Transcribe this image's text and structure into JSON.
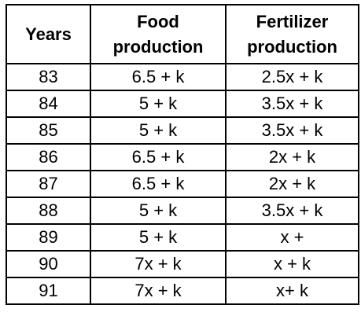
{
  "table": {
    "headers": {
      "years": "Years",
      "food_line1": "Food",
      "food_line2": "production",
      "fert_line1": "Fertilizer",
      "fert_line2": "production"
    },
    "rows": [
      {
        "year": "83",
        "food": "6.5 + k",
        "fertilizer": "2.5x + k"
      },
      {
        "year": "84",
        "food": "5 + k",
        "fertilizer": "3.5x + k"
      },
      {
        "year": "85",
        "food": "5 + k",
        "fertilizer": "3.5x + k"
      },
      {
        "year": "86",
        "food": "6.5 + k",
        "fertilizer": "2x + k"
      },
      {
        "year": "87",
        "food": "6.5 + k",
        "fertilizer": "2x + k"
      },
      {
        "year": "88",
        "food": "5 + k",
        "fertilizer": "3.5x + k"
      },
      {
        "year": "89",
        "food": "5 + k",
        "fertilizer": "x +"
      },
      {
        "year": "90",
        "food": "7x + k",
        "fertilizer": "x + k"
      },
      {
        "year": "91",
        "food": "7x + k",
        "fertilizer": "x+ k"
      }
    ]
  }
}
